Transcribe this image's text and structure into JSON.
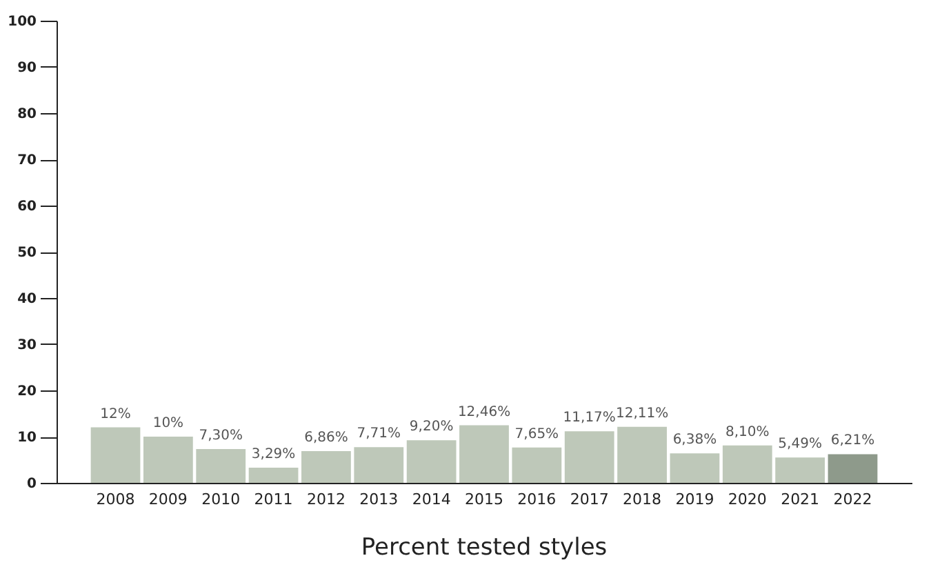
{
  "chart_data": {
    "type": "bar",
    "title": "Percent tested styles",
    "categories": [
      "2008",
      "2009",
      "2010",
      "2011",
      "2012",
      "2013",
      "2014",
      "2015",
      "2016",
      "2017",
      "2018",
      "2019",
      "2020",
      "2021",
      "2022"
    ],
    "values": [
      12,
      10,
      7.3,
      3.29,
      6.86,
      7.71,
      9.2,
      12.46,
      7.65,
      11.17,
      12.11,
      6.38,
      8.1,
      5.49,
      6.21
    ],
    "value_labels": [
      "12%",
      "10%",
      "7,30%",
      "3,29%",
      "6,86%",
      "7,71%",
      "9,20%",
      "12,46%",
      "7,65%",
      "11,17%",
      "12,11%",
      "6,38%",
      "8,10%",
      "5,49%",
      "6,21%"
    ],
    "colors": [
      "#bec8b9",
      "#bec8b9",
      "#bec8b9",
      "#bec8b9",
      "#bec8b9",
      "#bec8b9",
      "#bec8b9",
      "#bec8b9",
      "#bec8b9",
      "#bec8b9",
      "#bec8b9",
      "#bec8b9",
      "#bec8b9",
      "#bec8b9",
      "#8e9a8b"
    ],
    "ylim": [
      0,
      100
    ],
    "yticks": [
      0,
      10,
      20,
      30,
      40,
      50,
      60,
      70,
      80,
      90,
      100
    ],
    "grid": false
  }
}
